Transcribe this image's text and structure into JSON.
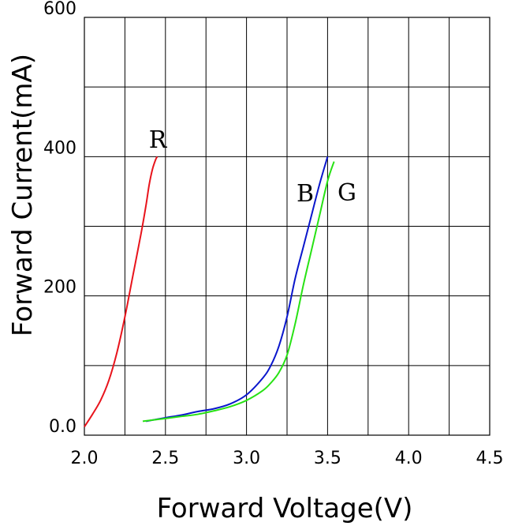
{
  "chart_data": {
    "type": "line",
    "xlabel": "Forward Voltage(V)",
    "ylabel": "Forward Current(mA)",
    "xlim": [
      2.0,
      4.5
    ],
    "ylim": [
      0,
      600
    ],
    "x_ticks": [
      2.0,
      2.25,
      2.5,
      2.75,
      3.0,
      3.25,
      3.5,
      3.75,
      4.0,
      4.25,
      4.5
    ],
    "y_ticks": [
      0,
      100,
      200,
      300,
      400,
      500,
      600
    ],
    "x_tick_labels": [
      "2.0",
      "2.5",
      "3.0",
      "3.5",
      "4.0",
      "4.5"
    ],
    "y_tick_labels": [
      "0.0",
      "200",
      "400",
      "600"
    ],
    "grid": true,
    "series": [
      {
        "name": "R",
        "color": "#e8141c",
        "x": [
          2.0,
          2.05,
          2.1,
          2.15,
          2.2,
          2.25,
          2.3,
          2.35,
          2.38,
          2.4,
          2.42,
          2.44,
          2.45
        ],
        "y": [
          12,
          30,
          50,
          78,
          118,
          170,
          230,
          290,
          330,
          360,
          382,
          396,
          400
        ]
      },
      {
        "name": "B",
        "color": "#0a16cc",
        "x": [
          2.38,
          2.5,
          2.6,
          2.7,
          2.8,
          2.9,
          3.0,
          3.1,
          3.15,
          3.2,
          3.25,
          3.3,
          3.35,
          3.4,
          3.45,
          3.5
        ],
        "y": [
          20,
          25,
          29,
          34,
          38,
          45,
          58,
          82,
          100,
          128,
          170,
          225,
          270,
          315,
          360,
          400
        ]
      },
      {
        "name": "G",
        "color": "#27e214",
        "x": [
          2.36,
          2.5,
          2.6,
          2.7,
          2.8,
          2.9,
          3.0,
          3.1,
          3.15,
          3.2,
          3.25,
          3.3,
          3.35,
          3.4,
          3.45,
          3.5,
          3.54
        ],
        "y": [
          20,
          24,
          27,
          30,
          35,
          41,
          50,
          64,
          75,
          90,
          115,
          160,
          215,
          265,
          315,
          365,
          393
        ]
      }
    ]
  }
}
